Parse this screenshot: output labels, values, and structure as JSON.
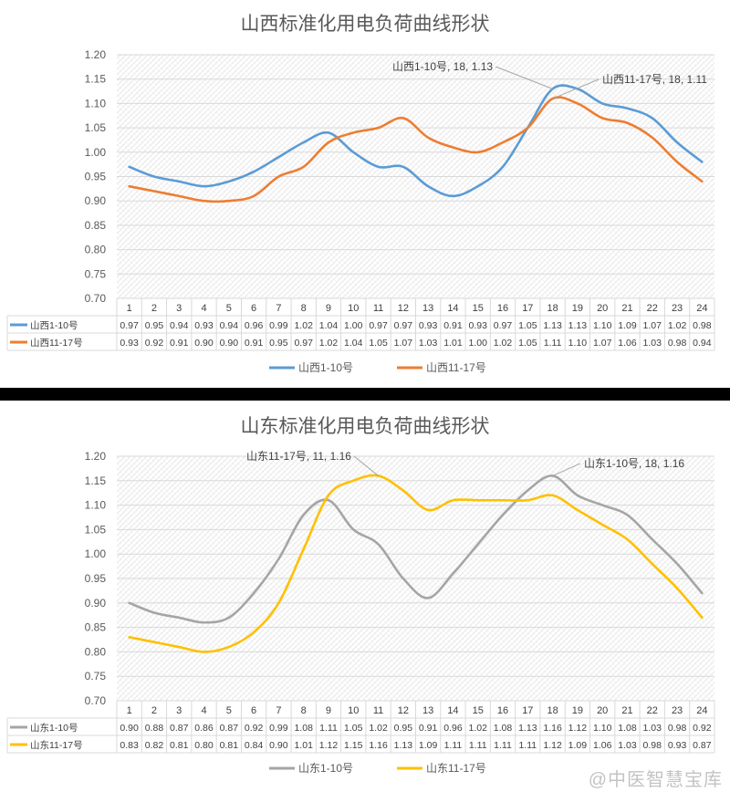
{
  "chart_data": [
    {
      "type": "line",
      "title": "山西标准化用电负荷曲线形状",
      "categories": [
        "1",
        "2",
        "3",
        "4",
        "5",
        "6",
        "7",
        "8",
        "9",
        "10",
        "11",
        "12",
        "13",
        "14",
        "15",
        "16",
        "17",
        "18",
        "19",
        "20",
        "21",
        "22",
        "23",
        "24"
      ],
      "ylim": [
        0.7,
        1.2
      ],
      "yticks": [
        "0.70",
        "0.75",
        "0.80",
        "0.85",
        "0.90",
        "0.95",
        "1.00",
        "1.05",
        "1.10",
        "1.15",
        "1.20"
      ],
      "grid": true,
      "legend": "bottom",
      "data_table": true,
      "series": [
        {
          "name": "山西1-10号",
          "color": "#5b9bd5",
          "values": [
            0.97,
            0.95,
            0.94,
            0.93,
            0.94,
            0.96,
            0.99,
            1.02,
            1.04,
            1.0,
            0.97,
            0.97,
            0.93,
            0.91,
            0.93,
            0.97,
            1.05,
            1.13,
            1.13,
            1.1,
            1.09,
            1.07,
            1.02,
            0.98
          ]
        },
        {
          "name": "山西11-17号",
          "color": "#ed7d31",
          "values": [
            0.93,
            0.92,
            0.91,
            0.9,
            0.9,
            0.91,
            0.95,
            0.97,
            1.02,
            1.04,
            1.05,
            1.07,
            1.03,
            1.01,
            1.0,
            1.02,
            1.05,
            1.11,
            1.1,
            1.07,
            1.06,
            1.03,
            0.98,
            0.94
          ]
        }
      ],
      "annotations": [
        {
          "series": 0,
          "x": "18",
          "text": "山西1-10号, 18, 1.13"
        },
        {
          "series": 1,
          "x": "18",
          "text": "山西11-17号, 18, 1.11"
        }
      ]
    },
    {
      "type": "line",
      "title": "山东标准化用电负荷曲线形状",
      "categories": [
        "1",
        "2",
        "3",
        "4",
        "5",
        "6",
        "7",
        "8",
        "9",
        "10",
        "11",
        "12",
        "13",
        "14",
        "15",
        "16",
        "17",
        "18",
        "19",
        "20",
        "21",
        "22",
        "23",
        "24"
      ],
      "ylim": [
        0.7,
        1.2
      ],
      "yticks": [
        "0.70",
        "0.75",
        "0.80",
        "0.85",
        "0.90",
        "0.95",
        "1.00",
        "1.05",
        "1.10",
        "1.15",
        "1.20"
      ],
      "grid": true,
      "legend": "bottom",
      "data_table": true,
      "series": [
        {
          "name": "山东1-10号",
          "color": "#a5a5a5",
          "values": [
            0.9,
            0.88,
            0.87,
            0.86,
            0.87,
            0.92,
            0.99,
            1.08,
            1.11,
            1.05,
            1.02,
            0.95,
            0.91,
            0.96,
            1.02,
            1.08,
            1.13,
            1.16,
            1.12,
            1.1,
            1.08,
            1.03,
            0.98,
            0.92
          ]
        },
        {
          "name": "山东11-17号",
          "color": "#ffc000",
          "values": [
            0.83,
            0.82,
            0.81,
            0.8,
            0.81,
            0.84,
            0.9,
            1.01,
            1.12,
            1.15,
            1.16,
            1.13,
            1.09,
            1.11,
            1.11,
            1.11,
            1.11,
            1.12,
            1.09,
            1.06,
            1.03,
            0.98,
            0.93,
            0.87
          ]
        }
      ],
      "annotations": [
        {
          "series": 1,
          "x": "11",
          "text": "山东11-17号, 11, 1.16"
        },
        {
          "series": 0,
          "x": "18",
          "text": "山东1-10号, 18, 1.16"
        }
      ]
    }
  ],
  "watermark": "@中医智慧宝库"
}
